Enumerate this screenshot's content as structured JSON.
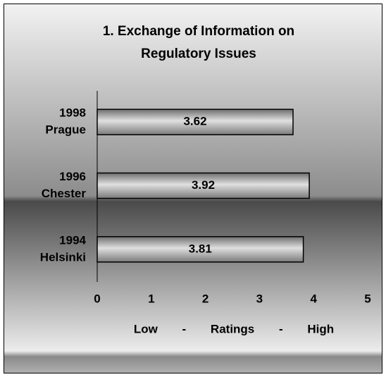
{
  "chart_data": {
    "type": "bar",
    "orientation": "horizontal",
    "title": [
      "1. Exchange of Information on",
      "Regulatory Issues"
    ],
    "categories": [
      [
        "1998",
        "Prague"
      ],
      [
        "1996",
        "Chester"
      ],
      [
        "1994",
        "Helsinki"
      ]
    ],
    "values": [
      3.62,
      3.92,
      3.81
    ],
    "xlim": [
      0,
      5
    ],
    "xticks": [
      0,
      1,
      2,
      3,
      4,
      5
    ],
    "xlabel": "Low - Ratings - High",
    "grid": false
  }
}
